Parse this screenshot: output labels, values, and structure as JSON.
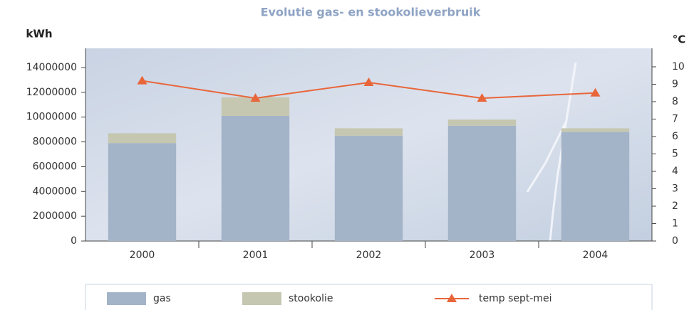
{
  "chart_data": {
    "type": "bar",
    "stacked": true,
    "title": "Evolutie gas- en stookolieverbruik",
    "ylabel": "kWh",
    "y2label": "°C",
    "categories": [
      "2000",
      "2001",
      "2002",
      "2003",
      "2004"
    ],
    "series": [
      {
        "name": "gas",
        "type": "bar",
        "color": "#a3b3c8",
        "values": [
          7900000,
          10100000,
          8500000,
          9300000,
          8800000
        ]
      },
      {
        "name": "stookolie",
        "type": "bar",
        "color": "#c6c7b1",
        "values": [
          800000,
          1500000,
          600000,
          500000,
          300000
        ]
      },
      {
        "name": "temp sept-mei",
        "type": "line",
        "axis": "y2",
        "color": "#e8663a",
        "values": [
          9.2,
          8.2,
          9.1,
          8.2,
          8.5
        ]
      }
    ],
    "ylim": [
      0,
      15550000
    ],
    "yticks": [
      0,
      2000000,
      4000000,
      6000000,
      8000000,
      10000000,
      12000000,
      14000000
    ],
    "y2lim": [
      0,
      11.06
    ],
    "y2ticks": [
      0,
      1,
      2,
      3,
      4,
      5,
      6,
      7,
      8,
      9,
      10
    ],
    "legend": "bottom"
  }
}
